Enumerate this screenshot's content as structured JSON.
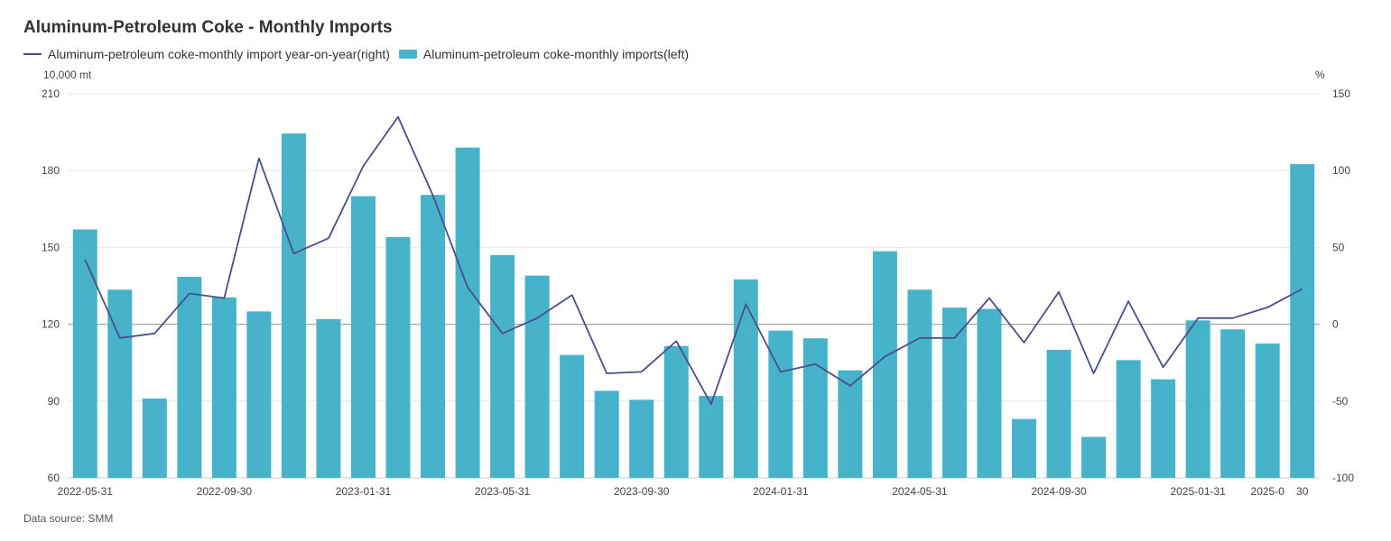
{
  "title": "Aluminum-Petroleum Coke - Monthly Imports",
  "source": "Data source:  SMM",
  "legend": {
    "line_label": "Aluminum-petroleum coke-monthly import year-on-year(right)",
    "bar_label": "Aluminum-petroleum coke-monthly imports(left)"
  },
  "colors": {
    "bar": "#46b3cb",
    "line": "#4a4f8c",
    "grid": "#e6e6e6",
    "zero": "#999999"
  },
  "chart_data": {
    "type": "bar",
    "left_unit": "10,000 mt",
    "right_unit": "%",
    "ylim_left": [
      60,
      210
    ],
    "ylim_right": [
      -100,
      150
    ],
    "yticks_left": [
      60,
      90,
      120,
      150,
      180,
      210
    ],
    "yticks_right": [
      -100,
      -50,
      0,
      50,
      100,
      150
    ],
    "xtick_labels": [
      {
        "index": 0,
        "label": "2022-05-31"
      },
      {
        "index": 4,
        "label": "2022-09-30"
      },
      {
        "index": 8,
        "label": "2023-01-31"
      },
      {
        "index": 12,
        "label": "2023-05-31"
      },
      {
        "index": 16,
        "label": "2023-09-30"
      },
      {
        "index": 20,
        "label": "2024-01-31"
      },
      {
        "index": 24,
        "label": "2024-05-31"
      },
      {
        "index": 28,
        "label": "2024-09-30"
      },
      {
        "index": 32,
        "label": "2025-01-31"
      },
      {
        "index": 34,
        "label": "2025-0"
      },
      {
        "index": 35,
        "label": "30"
      }
    ],
    "series": [
      {
        "name": "Aluminum-petroleum coke-monthly imports(left)",
        "type": "bar",
        "axis": "left",
        "values": [
          157,
          133.5,
          91,
          138.5,
          130.5,
          125,
          194.5,
          122,
          170,
          154,
          170.5,
          189,
          147,
          139,
          108,
          94,
          90.5,
          111.5,
          92,
          137.5,
          117.5,
          114.5,
          102,
          148.5,
          133.5,
          126.5,
          126,
          83,
          110,
          76,
          106,
          98.5,
          121.5,
          118,
          112.5,
          182.5
        ]
      },
      {
        "name": "Aluminum-petroleum coke-monthly import year-on-year(right)",
        "type": "line",
        "axis": "right",
        "values": [
          42,
          -9,
          -6,
          20,
          17,
          108,
          46,
          56,
          103,
          135,
          84,
          24,
          -6,
          4,
          19,
          -32,
          -31,
          -11,
          -52,
          13,
          -31,
          -26,
          -40,
          -21,
          -9,
          -9,
          17,
          -12,
          21,
          -32,
          15,
          -28,
          4,
          4,
          11,
          23
        ]
      }
    ]
  }
}
